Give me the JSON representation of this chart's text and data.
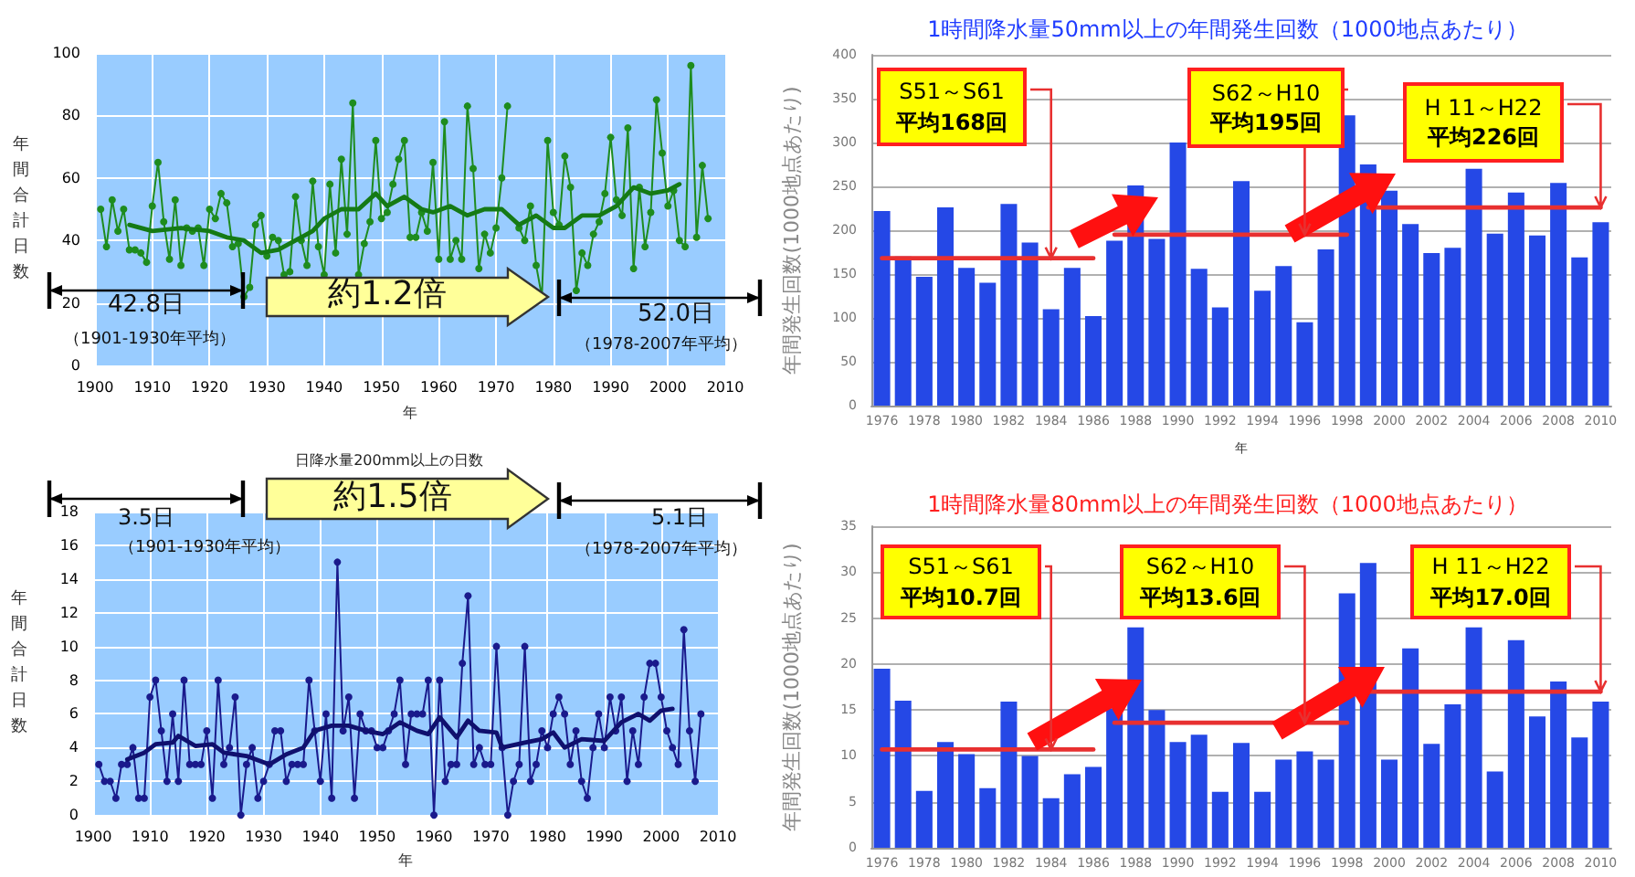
{
  "chart_data": [
    {
      "type": "line",
      "xlabel": "年",
      "ylabel": "年間合計日数",
      "x": [
        1901,
        1902,
        1903,
        1904,
        1905,
        1906,
        1907,
        1908,
        1909,
        1910,
        1911,
        1912,
        1913,
        1914,
        1915,
        1916,
        1917,
        1918,
        1919,
        1920,
        1921,
        1922,
        1923,
        1924,
        1925,
        1926,
        1927,
        1928,
        1929,
        1930,
        1931,
        1932,
        1933,
        1934,
        1935,
        1936,
        1937,
        1938,
        1939,
        1940,
        1941,
        1942,
        1943,
        1944,
        1945,
        1946,
        1947,
        1948,
        1949,
        1950,
        1951,
        1952,
        1953,
        1954,
        1955,
        1956,
        1957,
        1958,
        1959,
        1960,
        1961,
        1962,
        1963,
        1964,
        1965,
        1966,
        1967,
        1968,
        1969,
        1970,
        1971,
        1972,
        1973,
        1974,
        1975,
        1976,
        1977,
        1978,
        1979,
        1980,
        1981,
        1982,
        1983,
        1984,
        1985,
        1986,
        1987,
        1988,
        1989,
        1990,
        1991,
        1992,
        1993,
        1994,
        1995,
        1996,
        1997,
        1998,
        1999,
        2000,
        2001,
        2002,
        2003,
        2004,
        2005,
        2006,
        2007
      ],
      "series": [
        {
          "color": "#1e8c1e",
          "values": [
            50,
            38,
            53,
            43,
            50,
            37,
            37,
            36,
            33,
            51,
            65,
            46,
            34,
            53,
            32,
            44,
            43,
            44,
            32,
            50,
            47,
            55,
            52,
            38,
            39,
            22,
            25,
            45,
            48,
            35,
            41,
            40,
            29,
            30,
            54,
            40,
            32,
            59,
            38,
            29,
            58,
            36,
            66,
            42,
            84,
            29,
            39,
            46,
            72,
            47,
            49,
            58,
            66,
            72,
            41,
            41,
            49,
            43,
            65,
            34,
            78,
            34,
            40,
            34,
            83,
            63,
            31,
            42,
            36,
            44,
            60,
            83,
            null,
            44,
            40,
            51,
            32,
            22,
            72,
            49,
            45,
            67,
            57,
            24,
            36,
            32,
            42,
            46,
            55,
            73,
            53,
            48,
            76,
            31,
            57,
            38,
            49,
            85,
            68,
            51,
            56,
            40,
            38,
            96,
            41,
            64,
            47
          ]
        },
        {
          "color": "#157a15",
          "marker": "none",
          "x": [
            1906,
            1910,
            1915,
            1920,
            1923,
            1926,
            1929,
            1932,
            1935,
            1938,
            1940,
            1943,
            1946,
            1949,
            1951,
            1954,
            1957,
            1959,
            1962,
            1965,
            1968,
            1971,
            1974,
            1977,
            1980,
            1982,
            1985,
            1988,
            1991,
            1994,
            1997,
            2000,
            2002
          ],
          "values": [
            45,
            43,
            44,
            43,
            41,
            40,
            36,
            37,
            40,
            43,
            47,
            50,
            50,
            55,
            51,
            54,
            50,
            49,
            51,
            48,
            50,
            50,
            45,
            48,
            44,
            44,
            48,
            48,
            51,
            57,
            55,
            56,
            58
          ]
        }
      ],
      "xlim": [
        1900,
        2010
      ],
      "xticks": [
        1900,
        1910,
        1920,
        1930,
        1940,
        1950,
        1960,
        1970,
        1980,
        1990,
        2000,
        2010
      ],
      "ylim": [
        0,
        100
      ],
      "yticks": [
        0,
        20,
        40,
        60,
        80,
        100
      ],
      "grid": true,
      "marker": "circle",
      "annotations": [
        "42.8日",
        "（1901-1930年平均）",
        "約1.2倍",
        "52.0日",
        "（1978-2007年平均）"
      ]
    },
    {
      "type": "line",
      "title": "日降水量200mm以上の日数",
      "xlabel": "年",
      "ylabel": "年間合計日数",
      "x": [
        1901,
        1902,
        1903,
        1904,
        1905,
        1906,
        1907,
        1908,
        1909,
        1910,
        1911,
        1912,
        1913,
        1914,
        1915,
        1916,
        1917,
        1918,
        1919,
        1920,
        1921,
        1922,
        1923,
        1924,
        1925,
        1926,
        1927,
        1928,
        1929,
        1930,
        1931,
        1932,
        1933,
        1934,
        1935,
        1936,
        1937,
        1938,
        1939,
        1940,
        1941,
        1942,
        1943,
        1944,
        1945,
        1946,
        1947,
        1948,
        1949,
        1950,
        1951,
        1952,
        1953,
        1954,
        1955,
        1956,
        1957,
        1958,
        1959,
        1960,
        1961,
        1962,
        1963,
        1964,
        1965,
        1966,
        1967,
        1968,
        1969,
        1970,
        1971,
        1972,
        1973,
        1974,
        1975,
        1976,
        1977,
        1978,
        1979,
        1980,
        1981,
        1982,
        1983,
        1984,
        1985,
        1986,
        1987,
        1988,
        1989,
        1990,
        1991,
        1992,
        1993,
        1994,
        1995,
        1996,
        1997,
        1998,
        1999,
        2000,
        2001,
        2002,
        2003,
        2004,
        2005,
        2006,
        2007
      ],
      "series": [
        {
          "color": "#1a1a8c",
          "values": [
            3,
            2,
            2,
            1,
            3,
            3,
            4,
            1,
            1,
            7,
            8,
            5,
            2,
            6,
            2,
            8,
            3,
            3,
            3,
            5,
            1,
            8,
            3,
            4,
            7,
            0,
            3,
            4,
            1,
            2,
            3,
            5,
            5,
            2,
            3,
            3,
            3,
            8,
            5,
            2,
            6,
            1,
            15,
            5,
            7,
            1,
            6,
            5,
            5,
            4,
            4,
            5,
            6,
            8,
            3,
            6,
            6,
            6,
            8,
            0,
            8,
            2,
            3,
            3,
            9,
            13,
            3,
            4,
            3,
            3,
            10,
            4,
            0,
            2,
            3,
            10,
            2,
            3,
            5,
            4,
            6,
            7,
            6,
            3,
            5,
            2,
            1,
            4,
            6,
            4,
            7,
            5,
            7,
            2,
            5,
            3,
            7,
            9,
            9,
            7,
            5,
            4,
            3,
            11,
            5,
            2,
            6
          ]
        },
        {
          "color": "#10106e",
          "marker": "none",
          "x": [
            1906,
            1909,
            1911,
            1914,
            1915,
            1918,
            1921,
            1923,
            1927,
            1931,
            1934,
            1937,
            1939,
            1942,
            1945,
            1948,
            1951,
            1954,
            1957,
            1959,
            1961,
            1964,
            1966,
            1968,
            1971,
            1972,
            1976,
            1979,
            1981,
            1983,
            1986,
            1990,
            1993,
            1996,
            1998,
            2000,
            2002
          ],
          "values": [
            3.3,
            3.7,
            4.2,
            4.3,
            4.7,
            4.1,
            4.2,
            3.7,
            3.5,
            3.0,
            3.6,
            4.0,
            5.0,
            5.3,
            5.3,
            5.0,
            4.8,
            5.5,
            5.0,
            4.8,
            5.8,
            4.6,
            5.6,
            5.0,
            4.9,
            4.0,
            4.3,
            4.5,
            4.9,
            4.0,
            4.5,
            4.4,
            5.5,
            6.0,
            5.6,
            6.2,
            6.3
          ]
        }
      ],
      "xlim": [
        1900,
        2010
      ],
      "xticks": [
        1900,
        1910,
        1920,
        1930,
        1940,
        1950,
        1960,
        1970,
        1980,
        1990,
        2000,
        2010
      ],
      "ylim": [
        0,
        18
      ],
      "yticks": [
        0,
        2,
        4,
        6,
        8,
        10,
        12,
        14,
        16,
        18
      ],
      "grid": true,
      "marker": "circle",
      "annotations": [
        "3.5日",
        "（1901-1930年平均）",
        "約1.5倍",
        "5.1日",
        "（1978-2007年平均）"
      ]
    },
    {
      "type": "bar",
      "title": "1時間降水量50mm以上の年間発生回数（1000地点あたり）",
      "xlabel": "年",
      "ylabel": "年間発生回数(1000地点あたり)",
      "categories": [
        "1976",
        null,
        "1978",
        null,
        "1980",
        null,
        "1982",
        null,
        "1984",
        null,
        "1986",
        null,
        "1988",
        null,
        "1990",
        null,
        "1992",
        null,
        "1994",
        null,
        "1996",
        null,
        "1998",
        null,
        "2000",
        null,
        "2002",
        null,
        "2004",
        null,
        "2006",
        null,
        "2008",
        null,
        "2010"
      ],
      "series": [
        {
          "color": "#2548e6",
          "values": [
            222,
            170,
            147,
            226,
            157,
            140,
            230,
            186,
            110,
            157,
            102,
            188,
            251,
            190,
            300,
            156,
            112,
            256,
            131,
            159,
            95,
            178,
            331,
            275,
            245,
            207,
            174,
            180,
            270,
            196,
            243,
            194,
            254,
            169,
            209
          ]
        },
        {
          "type": "line",
          "color": "#e83030",
          "values": [
            168,
            168,
            168,
            168,
            168,
            168,
            168,
            168,
            168,
            168,
            168,
            null,
            null,
            null,
            null,
            null,
            null,
            null,
            null,
            null,
            null,
            null,
            null,
            null,
            null,
            null,
            null,
            null,
            null,
            null,
            null,
            null,
            null,
            null,
            null
          ]
        },
        {
          "type": "line",
          "color": "#e83030",
          "values": [
            null,
            null,
            null,
            null,
            null,
            null,
            null,
            null,
            null,
            null,
            null,
            195,
            195,
            195,
            195,
            195,
            195,
            195,
            195,
            195,
            195,
            195,
            195,
            null,
            null,
            null,
            null,
            null,
            null,
            null,
            null,
            null,
            null,
            null,
            null
          ]
        },
        {
          "type": "line",
          "color": "#e83030",
          "values": [
            null,
            null,
            null,
            null,
            null,
            null,
            null,
            null,
            null,
            null,
            null,
            null,
            null,
            null,
            null,
            null,
            null,
            null,
            null,
            null,
            null,
            null,
            null,
            226,
            226,
            226,
            226,
            226,
            226,
            226,
            226,
            226,
            226,
            226,
            226
          ]
        }
      ],
      "ylim": [
        0,
        400
      ],
      "yticks": [
        0,
        50,
        100,
        150,
        200,
        250,
        300,
        350,
        400
      ],
      "grid": "y",
      "marker": "none",
      "annotations": [
        {
          "text": "S51～S61\n平均168回",
          "x": "1984",
          "y": 168
        },
        {
          "text": "S62～H10\n平均195回",
          "x": "1996",
          "y": 195
        },
        {
          "text": "H 11～H22\n平均226回",
          "x": "2010",
          "y": 226
        }
      ]
    },
    {
      "type": "bar",
      "title": "1時間降水量80mm以上の年間発生回数（1000地点あたり）",
      "ylabel": "年間発生回数(1000地点あたり)",
      "categories": [
        "1976",
        null,
        "1978",
        null,
        "1980",
        null,
        "1982",
        null,
        "1984",
        null,
        "1986",
        null,
        "1988",
        null,
        "1990",
        null,
        "1992",
        null,
        "1994",
        null,
        "1996",
        null,
        "1998",
        null,
        "2000",
        null,
        "2002",
        null,
        "2004",
        null,
        "2006",
        null,
        "2008",
        null,
        "2010"
      ],
      "series": [
        {
          "color": "#2548e6",
          "values": [
            19.5,
            16,
            6.2,
            11.5,
            10.2,
            6.5,
            15.9,
            10,
            5.4,
            8,
            8.8,
            15.2,
            24,
            15,
            11.5,
            12.3,
            6.1,
            11.4,
            6.1,
            9.6,
            10.5,
            9.6,
            27.7,
            31,
            9.6,
            21.7,
            11.3,
            15.6,
            24,
            8.3,
            22.6,
            14.3,
            18.1,
            12,
            15.9
          ]
        },
        {
          "type": "line",
          "color": "#e83030",
          "values": [
            10.7,
            10.7,
            10.7,
            10.7,
            10.7,
            10.7,
            10.7,
            10.7,
            10.7,
            10.7,
            10.7,
            null,
            null,
            null,
            null,
            null,
            null,
            null,
            null,
            null,
            null,
            null,
            null,
            null,
            null,
            null,
            null,
            null,
            null,
            null,
            null,
            null,
            null,
            null,
            null
          ]
        },
        {
          "type": "line",
          "color": "#e83030",
          "values": [
            null,
            null,
            null,
            null,
            null,
            null,
            null,
            null,
            null,
            null,
            null,
            13.6,
            13.6,
            13.6,
            13.6,
            13.6,
            13.6,
            13.6,
            13.6,
            13.6,
            13.6,
            13.6,
            13.6,
            null,
            null,
            null,
            null,
            null,
            null,
            null,
            null,
            null,
            null,
            null,
            null
          ]
        },
        {
          "type": "line",
          "color": "#e83030",
          "values": [
            null,
            null,
            null,
            null,
            null,
            null,
            null,
            null,
            null,
            null,
            null,
            null,
            null,
            null,
            null,
            null,
            null,
            null,
            null,
            null,
            null,
            null,
            null,
            17.0,
            17.0,
            17.0,
            17.0,
            17.0,
            17.0,
            17.0,
            17.0,
            17.0,
            17.0,
            17.0,
            17.0
          ]
        }
      ],
      "ylim": [
        0,
        35
      ],
      "yticks": [
        0,
        5,
        10,
        15,
        20,
        25,
        30,
        35
      ],
      "grid": "y",
      "marker": "none",
      "annotations": [
        {
          "text": "S51～S61\n平均10.7回",
          "x": "1984",
          "y": 10.7
        },
        {
          "text": "S62～H10\n平均13.6回",
          "x": "1996",
          "y": 13.6
        },
        {
          "text": "H 11～H22\n平均17.0回",
          "x": "2010",
          "y": 17.0
        }
      ]
    }
  ]
}
